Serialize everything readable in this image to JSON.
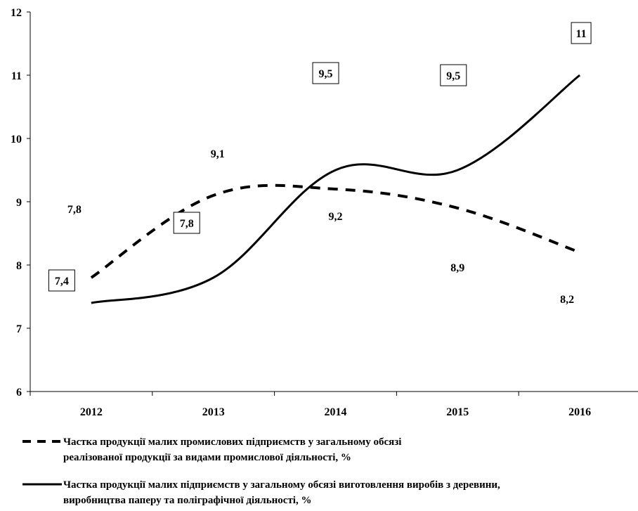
{
  "chart_data": {
    "type": "line",
    "categories": [
      "2012",
      "2013",
      "2014",
      "2015",
      "2016"
    ],
    "ylim": [
      6,
      12
    ],
    "yticks": [
      "6",
      "7",
      "8",
      "9",
      "10",
      "11",
      "12"
    ],
    "grid": false,
    "legend_position": "bottom",
    "series": [
      {
        "name": "Частка продукції малих промислових підприємств у загальному обсязі реалізованої продукції за видами промислової діяльності, %",
        "legend_line1": "Частка продукції малих промислових підприємств у загальному обсязі",
        "legend_line2": "реалізованої продукції за видами промислової діяльності, %",
        "style": "dashed",
        "values": [
          7.8,
          9.1,
          9.2,
          8.9,
          8.2
        ],
        "labels": [
          "7,8",
          "9,1",
          "9,2",
          "8,9",
          "8,2"
        ],
        "boxed_labels": false
      },
      {
        "name": "Частка продукції малих підприємств у загальному обсязі виготовлення виробів з деревини, виробництва паперу та поліграфічної діяльності, %",
        "legend_line1": "Частка продукції малих підприємств у загальному обсязі виготовлення виробів з деревини,",
        "legend_line2": "виробництва паперу та поліграфічної діяльності, %",
        "style": "solid",
        "values": [
          7.4,
          7.8,
          9.5,
          9.5,
          11
        ],
        "labels": [
          "7,4",
          "7,8",
          "9,5",
          "9,5",
          "11"
        ],
        "boxed_labels": true
      }
    ]
  }
}
